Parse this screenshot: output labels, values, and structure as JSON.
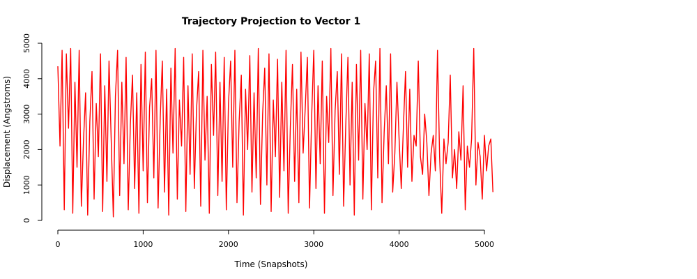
{
  "chart_data": {
    "type": "line",
    "title": "Trajectory Projection to Vector 1",
    "xlabel": "Time (Snapshots)",
    "ylabel": "Displacement (Angstroms)",
    "xlim": [
      0,
      5000
    ],
    "ylim": [
      0,
      5000
    ],
    "x_ticks": [
      0,
      1000,
      2000,
      3000,
      4000,
      5000
    ],
    "y_ticks": [
      0,
      1000,
      2000,
      3000,
      4000,
      5000
    ],
    "x_tick_labels": [
      "0",
      "1000",
      "2000",
      "3000",
      "4000",
      "5000"
    ],
    "y_tick_labels": [
      "0",
      "1000",
      "2000",
      "3000",
      "4000",
      "5000"
    ],
    "grid": false,
    "legend": "none",
    "line_color": "#ff0000",
    "series": [
      {
        "x_start": 0,
        "x_step": 25,
        "values": [
          4350,
          2100,
          4800,
          300,
          4700,
          2600,
          4850,
          200,
          3900,
          1500,
          4800,
          400,
          2200,
          3600,
          150,
          2800,
          4200,
          600,
          3300,
          1800,
          4700,
          250,
          3800,
          1100,
          4500,
          2300,
          100,
          3500,
          4800,
          700,
          3900,
          1600,
          4600,
          300,
          2700,
          4100,
          900,
          3600,
          200,
          4400,
          1400,
          4750,
          500,
          3200,
          4000,
          1200,
          4800,
          350,
          2900,
          4500,
          800,
          3700,
          150,
          4300,
          1900,
          4850,
          600,
          3400,
          2100,
          4600,
          250,
          3800,
          1300,
          4700,
          900,
          3100,
          4200,
          400,
          4800,
          1700,
          3500,
          200,
          4400,
          2400,
          4750,
          700,
          3900,
          1100,
          4600,
          300,
          3300,
          4500,
          1500,
          4800,
          500,
          2800,
          4100,
          150,
          3700,
          2000,
          4650,
          800,
          3600,
          1200,
          4850,
          450,
          3000,
          4300,
          1000,
          4700,
          250,
          3400,
          1800,
          4550,
          650,
          3900,
          1400,
          4800,
          200,
          2600,
          4400,
          1100,
          3700,
          500,
          4750,
          1900,
          3200,
          4600,
          350,
          2900,
          4800,
          900,
          3800,
          1600,
          4500,
          200,
          3500,
          2200,
          4850,
          700,
          3100,
          4200,
          1300,
          4700,
          400,
          2700,
          4600,
          1000,
          3900,
          150,
          4400,
          1700,
          4800,
          600,
          3300,
          2000,
          4700,
          300,
          3600,
          4500,
          1200,
          4850,
          500,
          2500,
          3800,
          1600,
          4700,
          800,
          1900,
          3900,
          2300,
          900,
          2600,
          4200,
          1500,
          3700,
          1100,
          2400,
          2100,
          4500,
          1800,
          1300,
          3000,
          2200,
          700,
          1900,
          2400,
          1400,
          4800,
          1800,
          200,
          2300,
          1600,
          2200,
          4100,
          1200,
          2000,
          900,
          2500,
          1700,
          3800,
          300,
          2100,
          1500,
          2300,
          4850,
          1000,
          2200,
          1800,
          600,
          2400,
          1400,
          2100,
          2300,
          800
        ]
      }
    ]
  }
}
